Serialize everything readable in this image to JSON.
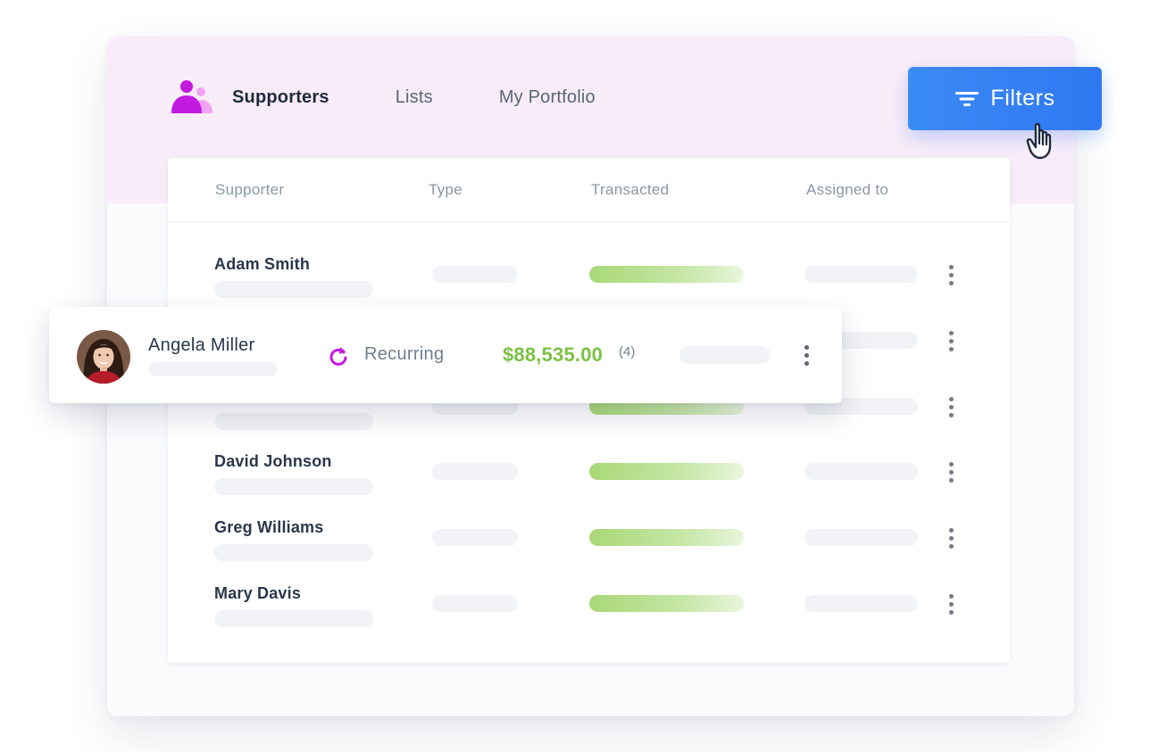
{
  "nav": {
    "tabs": [
      {
        "label": "Supporters",
        "active": true
      },
      {
        "label": "Lists",
        "active": false
      },
      {
        "label": "My Portfolio",
        "active": false
      }
    ],
    "icon": "supporters-icon"
  },
  "toolbar": {
    "filters_label": "Filters",
    "filters_icon": "filter-lines-icon",
    "cursor_icon": "pointer-hand-icon"
  },
  "table": {
    "columns": [
      "Supporter",
      "Type",
      "Transacted",
      "Assigned to"
    ],
    "rows": [
      {
        "name": "Adam Smith"
      },
      {
        "name": ""
      },
      {
        "name": ""
      },
      {
        "name": "David Johnson"
      },
      {
        "name": "Greg Williams"
      },
      {
        "name": "Mary Davis"
      }
    ]
  },
  "highlight": {
    "name": "Angela Miller",
    "type": "Recurring",
    "type_icon": "recurring-icon",
    "amount": "$88,535.00",
    "count": "(4)"
  },
  "colors": {
    "accent_blue": "#2f78f2",
    "brand_magenta": "#c21ae0",
    "amount_green": "#7bc142",
    "header_tint": "#f8ecf8"
  }
}
